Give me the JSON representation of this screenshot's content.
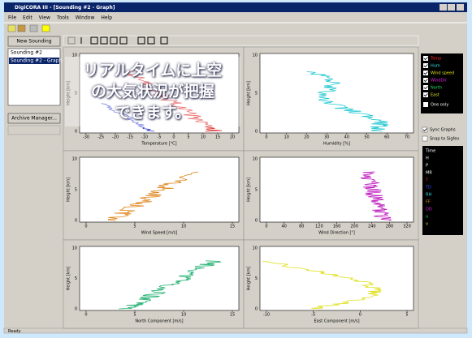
{
  "window": {
    "title": "DigiCORA III - [Sounding #2 - Graph]",
    "menu": [
      "File",
      "Edit",
      "View",
      "Tools",
      "Window",
      "Help"
    ]
  },
  "sidebar": {
    "new_button": "New Sounding",
    "items": [
      "Sounding #2",
      "Sounding #2 - Graph"
    ],
    "archive_button": "Archive Manager..."
  },
  "charts": [
    {
      "xlabel": "Temperature [°C]",
      "ylabel": "Height [km]",
      "xticks": [
        -30,
        -25,
        -20,
        -15,
        -10,
        -5,
        0,
        5,
        10,
        15,
        20
      ],
      "yticks": [
        0,
        5,
        10
      ]
    },
    {
      "xlabel": "Humidity [%]",
      "ylabel": "Height [km]",
      "xticks": [
        0,
        10,
        20,
        30,
        40,
        50,
        60,
        70
      ],
      "yticks": [
        0,
        5,
        10
      ]
    },
    {
      "xlabel": "Wind Speed [m/s]",
      "ylabel": "Height [km]",
      "xticks": [
        0,
        5,
        10,
        15
      ],
      "yticks": [
        0,
        5,
        10
      ]
    },
    {
      "xlabel": "Wind Direction [°]",
      "ylabel": "Height [km]",
      "xticks": [
        0,
        40,
        80,
        120,
        160,
        200,
        240,
        280,
        320
      ],
      "yticks": [
        0,
        5,
        10
      ]
    },
    {
      "xlabel": "North Component [m/s]",
      "ylabel": "Height [km]",
      "xticks": [
        0,
        5,
        10,
        15
      ],
      "yticks": [
        0,
        5,
        10
      ]
    },
    {
      "xlabel": "East Component [m/s]",
      "ylabel": "Height [km]",
      "xticks": [
        -10,
        -5,
        0,
        5
      ],
      "yticks": [
        0,
        5,
        10
      ]
    }
  ],
  "legend": {
    "items": [
      "Temp",
      "Hum",
      "Wind speed",
      "WindDir",
      "North",
      "East"
    ],
    "one_only": "One only",
    "sync": "Sync Graphs",
    "snap": "Snap to Sigfev"
  },
  "variables": [
    "Time",
    "H",
    "P",
    "MR",
    "T",
    "TD",
    "RH",
    "FF",
    "DD",
    "u",
    "v"
  ],
  "overlay": {
    "lines": [
      "リアルタイムに上空",
      "の大気状況が把握",
      "できます。"
    ]
  },
  "status": "Ready"
}
